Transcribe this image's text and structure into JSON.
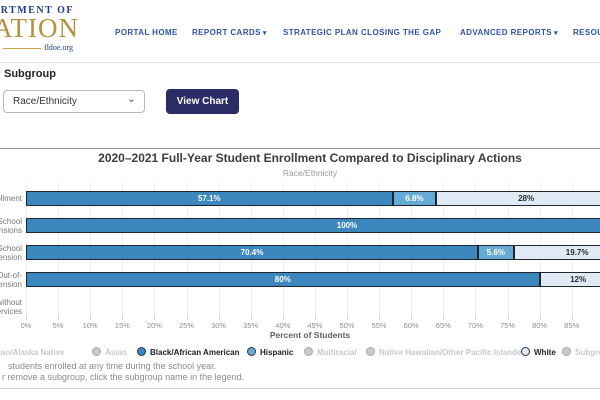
{
  "header": {
    "logo": {
      "line1": "DEPARTMENT OF",
      "line2": "EDUCATION",
      "line3": "fldoe.org"
    },
    "nav": [
      {
        "label": "PORTAL HOME",
        "caret": false
      },
      {
        "label": "REPORT CARDS",
        "caret": true
      },
      {
        "label": "STRATEGIC PLAN",
        "caret": false
      },
      {
        "label": "CLOSING THE GAP",
        "caret": false
      },
      {
        "label": "ADVANCED REPORTS",
        "caret": true
      },
      {
        "label": "RESOURCES",
        "caret": false
      }
    ]
  },
  "controls": {
    "subgroup_label": "Subgroup",
    "dropdown_value": "Race/Ethnicity",
    "button_label": "View Chart"
  },
  "chart_data": {
    "type": "stacked-bar-horizontal",
    "title": "2020–2021 Full-Year Student Enrollment Compared to Disciplinary Actions",
    "subtitle": "Race/Ethnicity",
    "xlabel": "Percent of Students",
    "x_ticks": [
      "0%",
      "5%",
      "10%",
      "15%",
      "20%",
      "25%",
      "30%",
      "35%",
      "40%",
      "45%",
      "50%",
      "55%",
      "60%",
      "65%",
      "70%",
      "75%",
      "80%",
      "85%"
    ],
    "x_visible_range_pct": [
      0,
      89
    ],
    "grid": true,
    "categories": [
      [
        "Enrollment"
      ],
      [
        "In-School",
        "Suspensions"
      ],
      [
        "Out-of-School",
        "Suspension"
      ],
      [
        "Alternative to Out-of-",
        "School Suspension"
      ],
      [
        "Expulsions without",
        "Services"
      ]
    ],
    "series": [
      {
        "name": "Black/African American",
        "color": "#3d87bf",
        "label_color": "#ffffff",
        "values": [
          57.1,
          100,
          70.4,
          80,
          0
        ],
        "labels": [
          "57.1%",
          "100%",
          "70.4%",
          "80%",
          ""
        ]
      },
      {
        "name": "Hispanic",
        "color": "#66aad6",
        "label_color": "#ffffff",
        "values": [
          6.8,
          0,
          5.6,
          0,
          0
        ],
        "labels": [
          "6.8%",
          "",
          "5.6%",
          "",
          ""
        ]
      },
      {
        "name": "White",
        "color": "#dfeaf5",
        "label_color": "#2a2a2a",
        "values": [
          28,
          0,
          19.7,
          12,
          0
        ],
        "labels": [
          "28%",
          "",
          "19.7%",
          "12%",
          ""
        ]
      }
    ],
    "legend": [
      {
        "label": "American Indian/Alaska Native",
        "active": false
      },
      {
        "label": "Asian",
        "active": false
      },
      {
        "label": "Black/African American",
        "active": true,
        "color": "#3d87bf"
      },
      {
        "label": "Hispanic",
        "active": true,
        "color": "#66aad6"
      },
      {
        "label": "Multiracial",
        "active": false
      },
      {
        "label": "Native Hawaiian/Other Pacific Islander",
        "active": false
      },
      {
        "label": "White",
        "active": true,
        "color": "#dfeaf5"
      },
      {
        "label": "Subgroup",
        "active": false
      }
    ],
    "footnotes": [
      "students enrolled at any time during the school year.",
      "r remove a subgroup, click the subgroup name in the legend."
    ]
  },
  "colors": {
    "nav_blue": "#2d55a5",
    "logo_navy": "#1e3c8c",
    "logo_gold": "#b5913f",
    "button_navy": "#2b2b66",
    "bar_border": "#1f262d"
  }
}
